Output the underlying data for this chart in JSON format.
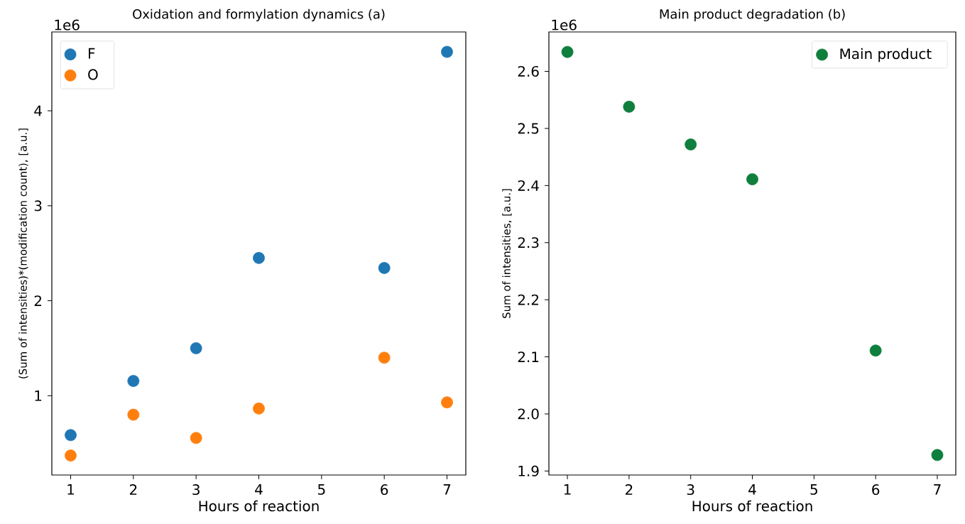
{
  "chart_data": [
    {
      "type": "scatter",
      "title": "Oxidation and formylation dynamics (a)",
      "xlabel": "Hours of reaction",
      "ylabel": "(Sum of intensities)*(modification count), [a.u.]",
      "annotations": [
        "1e6"
      ],
      "series": [
        {
          "name": "F",
          "color": "#1f77b4",
          "x": [
            1,
            2,
            3,
            4,
            6,
            7
          ],
          "values": [
            0.585,
            1.155,
            1.5,
            2.45,
            2.345,
            4.62
          ]
        },
        {
          "name": "O",
          "color": "#ff7f0e",
          "x": [
            1,
            2,
            3,
            4,
            6,
            7
          ],
          "values": [
            0.37,
            0.8,
            0.555,
            0.865,
            1.4,
            0.93
          ]
        }
      ],
      "xlim": [
        0.7,
        7.3
      ],
      "ylim": [
        0.165,
        4.83
      ],
      "xticks": [
        1,
        2,
        3,
        4,
        5,
        6,
        7
      ],
      "yticks": [
        1,
        2,
        3,
        4
      ],
      "legend": "top left",
      "grid": false
    },
    {
      "type": "scatter",
      "title": "Main product degradation (b)",
      "xlabel": "Hours of reaction",
      "ylabel": "Sum of intensities, [a.u.]",
      "annotations": [
        "1e6"
      ],
      "series": [
        {
          "name": "Main product",
          "color": "#0e7f3c",
          "x": [
            1,
            2,
            3,
            4,
            6,
            7
          ],
          "values": [
            2.634,
            2.538,
            2.472,
            2.411,
            2.111,
            1.928
          ]
        }
      ],
      "xlim": [
        0.7,
        7.3
      ],
      "ylim": [
        1.893,
        2.669
      ],
      "xticks": [
        1,
        2,
        3,
        4,
        5,
        6,
        7
      ],
      "yticks": [
        1.9,
        {
          "value": 2.0,
          "label": "2.0"
        },
        2.1,
        2.2,
        2.3,
        2.4,
        2.5,
        2.6
      ],
      "legend": "top right",
      "grid": false
    }
  ]
}
